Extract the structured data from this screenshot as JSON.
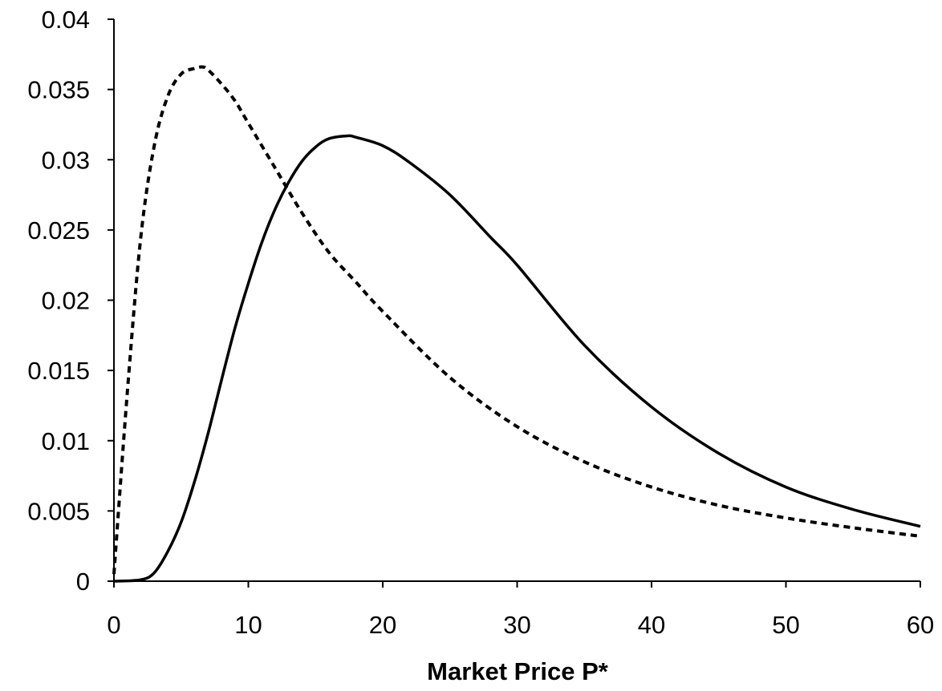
{
  "chart_data": {
    "type": "line",
    "title": "",
    "xlabel": "Market Price P*",
    "ylabel": "",
    "xlim": [
      0,
      60
    ],
    "ylim": [
      0,
      0.04
    ],
    "grid": false,
    "legend": "none",
    "x_ticks": [
      "0",
      "10",
      "20",
      "30",
      "40",
      "50",
      "60"
    ],
    "y_ticks": [
      "0",
      "0.005",
      "0.01",
      "0.015",
      "0.02",
      "0.025",
      "0.03",
      "0.035",
      "0.04"
    ],
    "series": [
      {
        "style": "dashed",
        "color": "#000000",
        "x": [
          0,
          1,
          2,
          3,
          4,
          5,
          6,
          6.6,
          7,
          8,
          9,
          10,
          12,
          14,
          16,
          18,
          20,
          25,
          30,
          35,
          40,
          45,
          50,
          55,
          60
        ],
        "y": [
          0.0005,
          0.0135,
          0.0245,
          0.031,
          0.0345,
          0.0361,
          0.0365,
          0.0366,
          0.0364,
          0.0354,
          0.0342,
          0.0326,
          0.0294,
          0.0262,
          0.0234,
          0.0213,
          0.0192,
          0.0145,
          0.011,
          0.0085,
          0.0067,
          0.0054,
          0.0045,
          0.0038,
          0.0032
        ]
      },
      {
        "style": "solid",
        "color": "#000000",
        "x": [
          0,
          2,
          3,
          4,
          5,
          6,
          7,
          8,
          9,
          10,
          11,
          12,
          13,
          14,
          15,
          16,
          17.4,
          18,
          20,
          22,
          25,
          28,
          30,
          35,
          40,
          45,
          50,
          55,
          60
        ],
        "y": [
          0,
          0.0001,
          0.0006,
          0.0021,
          0.0042,
          0.0071,
          0.0105,
          0.0143,
          0.018,
          0.0212,
          0.0241,
          0.0265,
          0.0284,
          0.0299,
          0.0309,
          0.0315,
          0.0317,
          0.0316,
          0.031,
          0.0298,
          0.0275,
          0.0245,
          0.0225,
          0.0168,
          0.0124,
          0.0091,
          0.0067,
          0.0051,
          0.0039
        ]
      }
    ]
  }
}
